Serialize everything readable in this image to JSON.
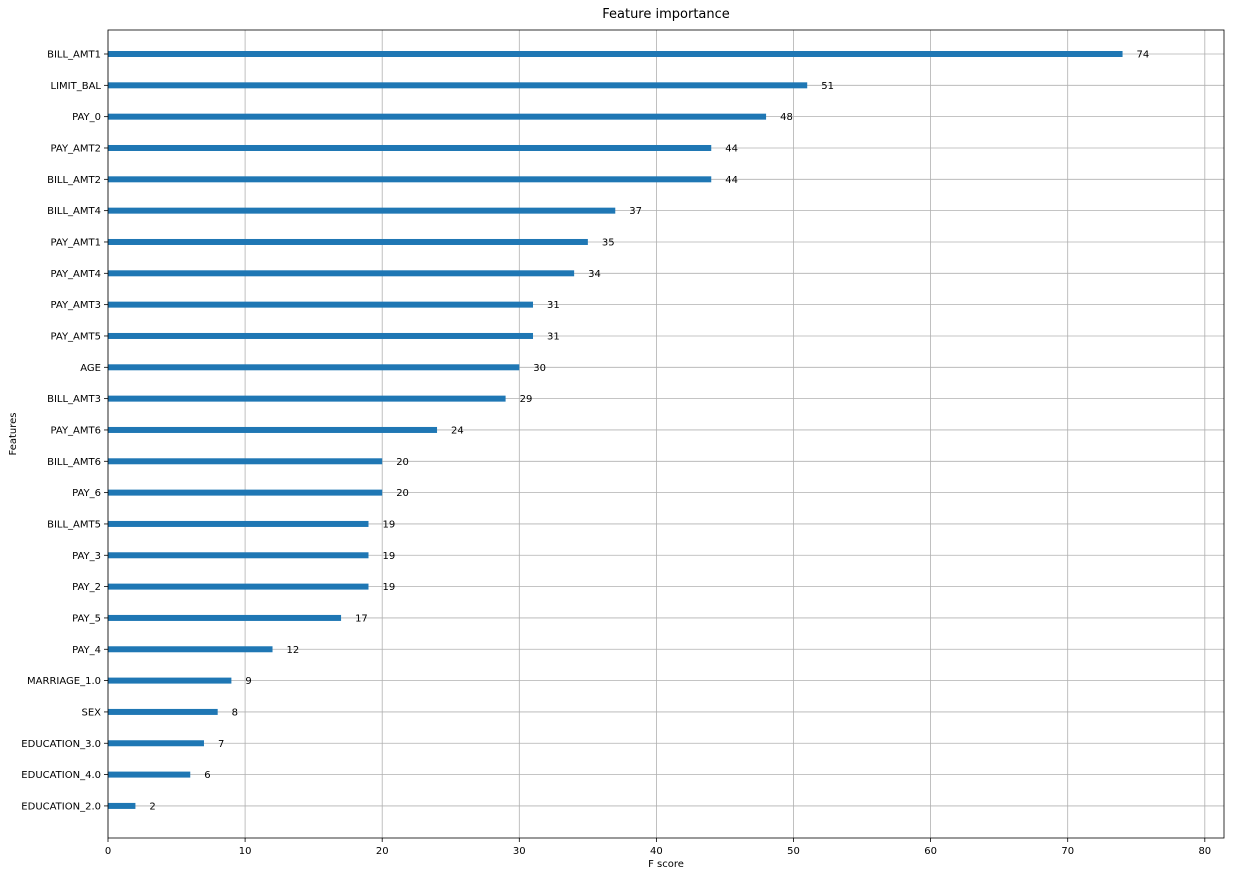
{
  "chart_data": {
    "type": "bar",
    "orientation": "horizontal",
    "title": "Feature importance",
    "xlabel": "F score",
    "ylabel": "Features",
    "xlim": [
      0,
      81.4
    ],
    "xticks": [
      0,
      10,
      20,
      30,
      40,
      50,
      60,
      70,
      80
    ],
    "grid": true,
    "bar_color": "#1f77b4",
    "categories": [
      "BILL_AMT1",
      "LIMIT_BAL",
      "PAY_0",
      "PAY_AMT2",
      "BILL_AMT2",
      "BILL_AMT4",
      "PAY_AMT1",
      "PAY_AMT4",
      "PAY_AMT3",
      "PAY_AMT5",
      "AGE",
      "BILL_AMT3",
      "PAY_AMT6",
      "BILL_AMT6",
      "PAY_6",
      "BILL_AMT5",
      "PAY_3",
      "PAY_2",
      "PAY_5",
      "PAY_4",
      "MARRIAGE_1.0",
      "SEX",
      "EDUCATION_3.0",
      "EDUCATION_4.0",
      "EDUCATION_2.0"
    ],
    "values": [
      74,
      51,
      48,
      44,
      44,
      37,
      35,
      34,
      31,
      31,
      30,
      29,
      24,
      20,
      20,
      19,
      19,
      19,
      17,
      12,
      9,
      8,
      7,
      6,
      2
    ]
  }
}
